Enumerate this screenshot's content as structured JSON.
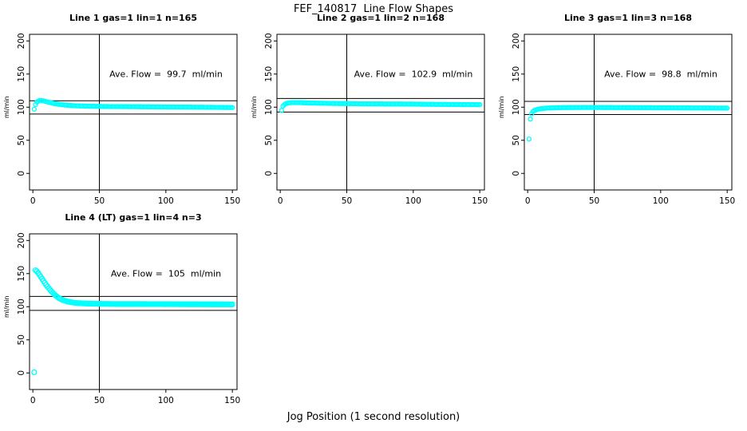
{
  "colors": {
    "marker": "#00FFFF",
    "axis": "#000000",
    "background": "#FFFFFF"
  },
  "chart_data": {
    "type": "scatter",
    "suptitle": "FEF_140817  Line Flow Shapes",
    "xlabel": "Jog Position (1 second resolution)",
    "xlim": [
      0,
      150
    ],
    "ylim": [
      0,
      200
    ],
    "xticks": [
      0,
      50,
      100,
      150
    ],
    "yticks": [
      0,
      50,
      100,
      150,
      200
    ],
    "grid": false,
    "marker": "open-circle",
    "marker_color": "#00FFFF",
    "panels": [
      {
        "title": "Line 1 gas=1 lin=1 n=165",
        "n": 165,
        "annotation": "Ave. Flow =  99.7  ml/min",
        "avg_flow_ml_min": 99.7,
        "ylabel": "ml/min",
        "vline_x": 50,
        "hlines": [
          109.7,
          89.7
        ],
        "marker_r": 2.5,
        "x_step": 1,
        "points_profile": [
          [
            1,
            97
          ],
          [
            2,
            104
          ],
          [
            3,
            107.5
          ],
          [
            4,
            109
          ],
          [
            5,
            110
          ],
          [
            7,
            110
          ],
          [
            9,
            109
          ],
          [
            11,
            108
          ],
          [
            13,
            107
          ],
          [
            16,
            105.5
          ],
          [
            19,
            104.5
          ],
          [
            23,
            103.5
          ],
          [
            28,
            102.5
          ],
          [
            34,
            102
          ],
          [
            42,
            101.5
          ],
          [
            55,
            101
          ],
          [
            75,
            100.8
          ],
          [
            100,
            100.3
          ],
          [
            125,
            100
          ],
          [
            150,
            99.5
          ]
        ]
      },
      {
        "title": "Line 2 gas=1 lin=2 n=168",
        "n": 168,
        "annotation": "Ave. Flow =  102.9  ml/min",
        "avg_flow_ml_min": 102.9,
        "ylabel": "ml/min",
        "vline_x": 50,
        "hlines": [
          113.2,
          92.6
        ],
        "marker_r": 2.5,
        "x_step": 1,
        "points_profile": [
          [
            1,
            95
          ],
          [
            2,
            101.5
          ],
          [
            3,
            103.5
          ],
          [
            4,
            105
          ],
          [
            6,
            106.5
          ],
          [
            9,
            107
          ],
          [
            14,
            107
          ],
          [
            20,
            106.5
          ],
          [
            30,
            106
          ],
          [
            45,
            105.5
          ],
          [
            65,
            105
          ],
          [
            90,
            104.8
          ],
          [
            115,
            104.3
          ],
          [
            135,
            104
          ],
          [
            150,
            103.8
          ]
        ]
      },
      {
        "title": "Line 3 gas=1 lin=3 n=168",
        "n": 168,
        "annotation": "Ave. Flow =  98.8  ml/min",
        "avg_flow_ml_min": 98.8,
        "ylabel": "ml/min",
        "vline_x": 50,
        "hlines": [
          108.7,
          88.9
        ],
        "marker_r": 2.5,
        "x_step": 1,
        "points_profile": [
          [
            1,
            52
          ],
          [
            2,
            82
          ],
          [
            3,
            90
          ],
          [
            4,
            93.5
          ],
          [
            5,
            95
          ],
          [
            7,
            96.5
          ],
          [
            9,
            97.5
          ],
          [
            12,
            98.2
          ],
          [
            16,
            98.8
          ],
          [
            22,
            99.2
          ],
          [
            30,
            99.5
          ],
          [
            50,
            99.6
          ],
          [
            80,
            99.3
          ],
          [
            110,
            99
          ],
          [
            150,
            98.6
          ]
        ]
      },
      {
        "title": "Line 4 (LT) gas=1 lin=4 n=3",
        "n": 3,
        "annotation": "Ave. Flow =  105  ml/min",
        "avg_flow_ml_min": 105,
        "ylabel": "ml/min",
        "vline_x": 50,
        "hlines": [
          115.5,
          94.5
        ],
        "marker_r": 3,
        "x_step": 1,
        "points_profile": [
          [
            1,
            1
          ],
          [
            2,
            155
          ],
          [
            3,
            153.5
          ],
          [
            4,
            151
          ],
          [
            5,
            148
          ],
          [
            6,
            145
          ],
          [
            7,
            142
          ],
          [
            8,
            139
          ],
          [
            9,
            136
          ],
          [
            10,
            133
          ],
          [
            11,
            130.5
          ],
          [
            12,
            128
          ],
          [
            13,
            125.5
          ],
          [
            14,
            123
          ],
          [
            15,
            121
          ],
          [
            16,
            119
          ],
          [
            17,
            117
          ],
          [
            18,
            115.5
          ],
          [
            19,
            114
          ],
          [
            20,
            112.5
          ],
          [
            22,
            110.5
          ],
          [
            24,
            109
          ],
          [
            26,
            107.8
          ],
          [
            28,
            107
          ],
          [
            31,
            106
          ],
          [
            34,
            105.4
          ],
          [
            38,
            105
          ],
          [
            44,
            104.6
          ],
          [
            52,
            104.3
          ],
          [
            65,
            104
          ],
          [
            85,
            104
          ],
          [
            110,
            103.8
          ],
          [
            135,
            103.6
          ],
          [
            150,
            103.5
          ]
        ]
      }
    ]
  }
}
